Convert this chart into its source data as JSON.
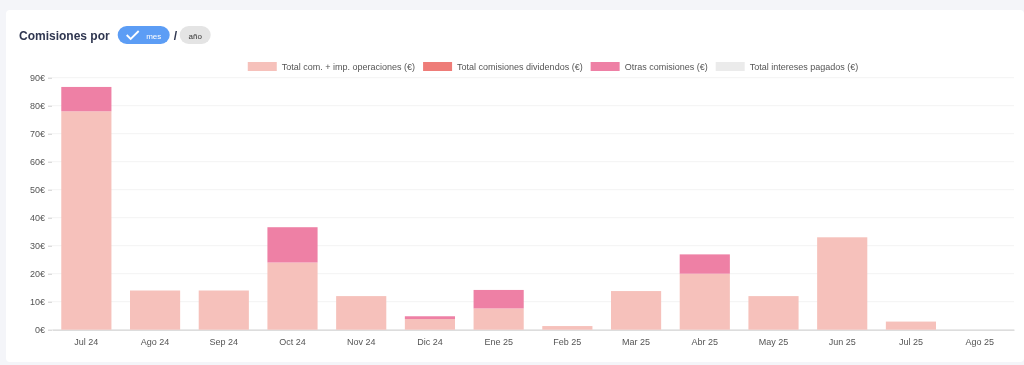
{
  "chart_data": {
    "type": "bar",
    "title": "Comisiones por",
    "annotations": [
      "mes",
      "/",
      "año"
    ],
    "categories": [
      "Jul 24",
      "Ago 24",
      "Sep 24",
      "Oct 24",
      "Nov 24",
      "Dic 24",
      "Ene 25",
      "Feb 25",
      "Mar 25",
      "Abr 25",
      "May 25",
      "Jun 25",
      "Jul 25",
      "Ago 25"
    ],
    "stacked": true,
    "series": [
      {
        "name": "Total com. + imp. operaciones (€)",
        "color": "#f6c1bb",
        "values": [
          78,
          14,
          14,
          24,
          12,
          3.8,
          7.6,
          1.3,
          13.8,
          20,
          12,
          33,
          2.9,
          0
        ]
      },
      {
        "name": "Total comisiones dividendos (€)",
        "color": "#ee7c78",
        "values": [
          0,
          0,
          0,
          0,
          0,
          0,
          0,
          0,
          0,
          0,
          0,
          0,
          0,
          0
        ]
      },
      {
        "name": "Otras comisiones (€)",
        "color": "#ee80a5",
        "values": [
          8.7,
          0,
          0,
          12.6,
          0,
          1,
          6.6,
          0,
          0,
          6.9,
          0,
          0,
          0,
          0
        ]
      },
      {
        "name": "Total intereses pagados (€)",
        "color": "#ebebeb",
        "values": [
          0,
          0,
          0,
          0,
          0,
          0,
          0,
          0,
          0,
          0,
          0,
          0,
          0,
          0
        ]
      }
    ],
    "ylim": [
      0,
      90
    ],
    "yticks": [
      {
        "value": 0,
        "label": "0€"
      },
      {
        "value": 10,
        "label": "10€"
      },
      {
        "value": 20,
        "label": "20€"
      },
      {
        "value": 30,
        "label": "30€"
      },
      {
        "value": 40,
        "label": "40€"
      },
      {
        "value": 50,
        "label": "50€"
      },
      {
        "value": 60,
        "label": "60€"
      },
      {
        "value": 70,
        "label": "70€"
      },
      {
        "value": 80,
        "label": "80€"
      },
      {
        "value": 90,
        "label": "90€"
      }
    ],
    "grid": "y",
    "legend": "top"
  }
}
